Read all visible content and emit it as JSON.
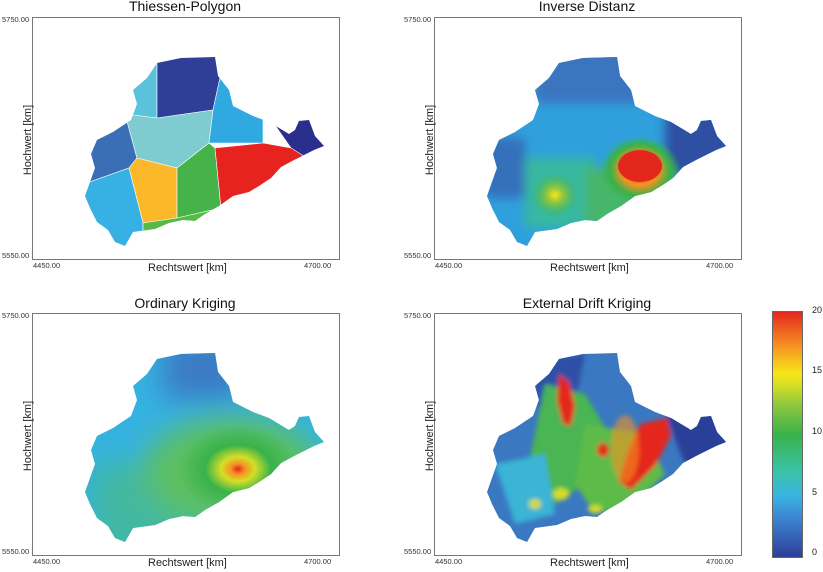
{
  "panels": [
    {
      "title": "Thiessen-Polygon",
      "xlabel": "Rechtswert [km]",
      "ylabel": "Hochwert [km]",
      "x_ticks": [
        "4450.00",
        "4700.00"
      ],
      "y_ticks": [
        "5750.00",
        "5550.00"
      ],
      "method": "thiessen"
    },
    {
      "title": "Inverse Distanz",
      "xlabel": "Rechtswert [km]",
      "ylabel": "Hochwert [km]",
      "x_ticks": [
        "4450.00",
        "4700.00"
      ],
      "y_ticks": [
        "5750.00",
        "5550.00"
      ],
      "method": "idw"
    },
    {
      "title": "Ordinary Kriging",
      "xlabel": "Rechtswert [km]",
      "ylabel": "Hochwert [km]",
      "x_ticks": [
        "4450.00",
        "4700.00"
      ],
      "y_ticks": [
        "5750.00",
        "5550.00"
      ],
      "method": "ok"
    },
    {
      "title": "External Drift Kriging",
      "xlabel": "Rechtswert [km]",
      "ylabel": "Hochwert [km]",
      "x_ticks": [
        "4450.00",
        "4700.00"
      ],
      "y_ticks": [
        "5750.00",
        "5550.00"
      ],
      "method": "edk"
    }
  ],
  "colorbar": {
    "ticks": [
      "20",
      "15",
      "10",
      "5",
      "0"
    ],
    "range": [
      0,
      20
    ],
    "colors": [
      "#2c3f98",
      "#3ab4e2",
      "#39b24a",
      "#f6e617",
      "#e4271d"
    ]
  },
  "colors": {
    "thiessen": [
      "#5bc2dc",
      "#2f3e97",
      "#3a6fb5",
      "#7ecbd0",
      "#30a8e0",
      "#2a2f8e",
      "#fbb829",
      "#45b24a",
      "#e6231f",
      "#37b0e3",
      "#58b947"
    ]
  }
}
